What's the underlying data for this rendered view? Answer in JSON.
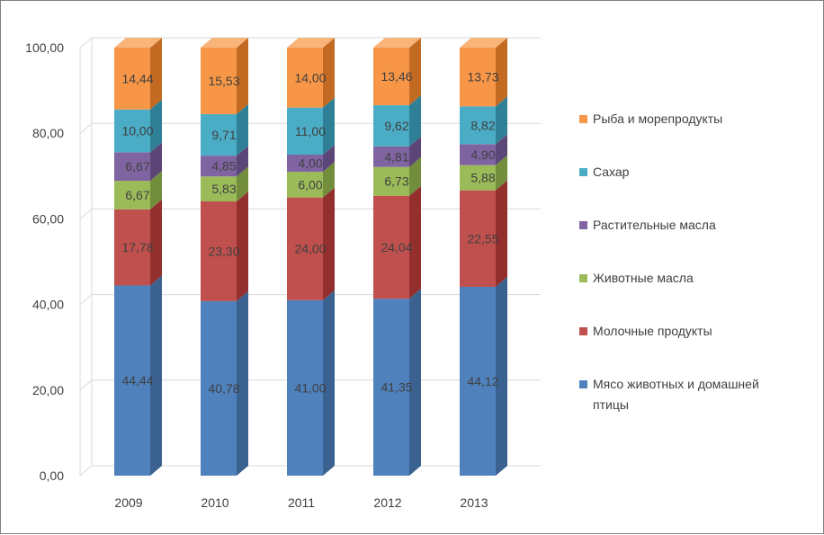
{
  "chart_data": {
    "type": "bar",
    "stacked": true,
    "style": "3d-column",
    "categories": [
      "2009",
      "2010",
      "2011",
      "2012",
      "2013"
    ],
    "series": [
      {
        "name": "Мясо животных и домашней птицы",
        "values": [
          44.44,
          40.78,
          41.0,
          41.35,
          44.12
        ],
        "labels": [
          "44,44",
          "40,78",
          "41,00",
          "41,35",
          "44,12"
        ],
        "color": "#4f81bd",
        "side": "#3a6190",
        "top": "#7399cc"
      },
      {
        "name": "Молочные продукты",
        "values": [
          17.78,
          23.3,
          24.0,
          24.04,
          22.55
        ],
        "labels": [
          "17,78",
          "23,30",
          "24,00",
          "24,04",
          "22,55"
        ],
        "color": "#c0504d",
        "side": "#93302e",
        "top": "#d47a77"
      },
      {
        "name": "Животные масла",
        "values": [
          6.67,
          5.83,
          6.0,
          6.73,
          5.88
        ],
        "labels": [
          "6,67",
          "5,83",
          "6,00",
          "6,73",
          "5,88"
        ],
        "color": "#9bbb59",
        "side": "#728d3c",
        "top": "#b6cf82"
      },
      {
        "name": "Растительные масла",
        "values": [
          6.67,
          4.85,
          4.0,
          4.81,
          4.9
        ],
        "labels": [
          "6,67",
          "4,85",
          "4,00",
          "4,81",
          "4,90"
        ],
        "color": "#8064a2",
        "side": "#5c4677",
        "top": "#a088c0"
      },
      {
        "name": "Сахар",
        "values": [
          10.0,
          9.71,
          11.0,
          9.62,
          8.82
        ],
        "labels": [
          "10,00",
          "9,71",
          "11,00",
          "9,62",
          "8,82"
        ],
        "color": "#4bacc6",
        "side": "#2f8096",
        "top": "#7dc4d7"
      },
      {
        "name": "Рыба и морепродукты",
        "values": [
          14.44,
          15.53,
          14.0,
          13.46,
          13.73
        ],
        "labels": [
          "14,44",
          "15,53",
          "14,00",
          "13,46",
          "13,73"
        ],
        "color": "#f79646",
        "side": "#c26a22",
        "top": "#f9b47a"
      }
    ],
    "legend": [
      "Рыба и морепродукты",
      "Сахар",
      "Растительные масла",
      "Животные масла",
      "Молочные продукты",
      "Мясо животных и домашней птицы"
    ],
    "legend_position": "right",
    "ylim": [
      0,
      100
    ],
    "yticks": [
      0,
      20,
      40,
      60,
      80,
      100
    ],
    "ytick_labels": [
      "0,00",
      "20,00",
      "40,00",
      "60,00",
      "80,00",
      "100,00"
    ],
    "grid": true,
    "title": "",
    "xlabel": "",
    "ylabel": ""
  },
  "colors": {
    "grid": "#d9d9d9",
    "text": "#404040",
    "frame": "#7f7f7f"
  }
}
